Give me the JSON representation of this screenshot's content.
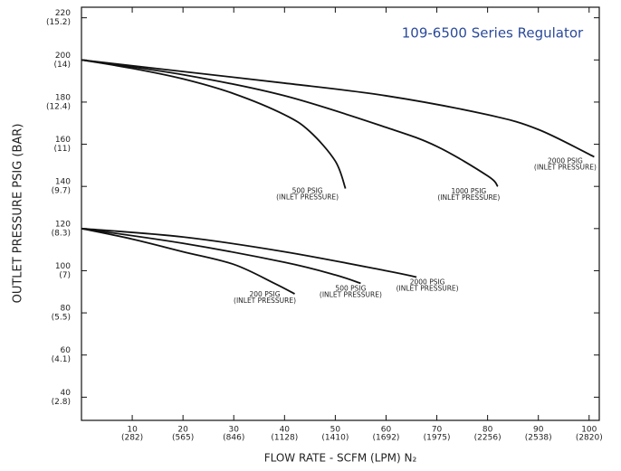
{
  "chart_data": {
    "type": "line",
    "title": "109-6500 Series Regulator",
    "x_label": "FLOW RATE - SCFM (LPM) N₂",
    "y_label": "OUTLET PRESSURE PSIG (BAR)",
    "xlim": [
      0,
      102
    ],
    "ylim": [
      29,
      225
    ],
    "xticks": [
      10,
      20,
      30,
      40,
      50,
      60,
      70,
      80,
      90,
      100
    ],
    "xtick_sublabels": [
      "(282)",
      "(565)",
      "(846)",
      "(1128)",
      "(1410)",
      "(1692)",
      "(1975)",
      "(2256)",
      "(2538)",
      "(2820)"
    ],
    "yticks": [
      220,
      200,
      180,
      160,
      140,
      120,
      100,
      80,
      60,
      40
    ],
    "ytick_sublabels": [
      "(15.2)",
      "(14)",
      "(12.4)",
      "(11)",
      "(9.7)",
      "(8.3)",
      "(7)",
      "(5.5)",
      "(4.1)",
      "(2.8)"
    ],
    "color": "#111111",
    "title_color": "#2b4a9a",
    "series": [
      {
        "name": "500 PSIG",
        "note": "(INLET PRESSURE)",
        "x": [
          0,
          10,
          20,
          30,
          40,
          45,
          50,
          52
        ],
        "values": [
          200,
          196,
          191,
          184,
          174,
          166,
          152,
          139
        ]
      },
      {
        "name": "1000 PSIG",
        "note": "(INLET PRESSURE)",
        "x": [
          0,
          20,
          40,
          60,
          70,
          80,
          82
        ],
        "values": [
          200,
          193,
          183,
          168,
          159,
          145,
          140
        ]
      },
      {
        "name": "2000 PSIG",
        "note": "(INLET PRESSURE)",
        "x": [
          0,
          20,
          40,
          60,
          80,
          90,
          101
        ],
        "values": [
          200,
          194.5,
          189,
          183,
          174,
          167,
          154
        ]
      },
      {
        "name": "200 PSIG",
        "note": "(INLET PRESSURE)",
        "x": [
          0,
          10,
          20,
          30,
          38,
          42
        ],
        "values": [
          120,
          115,
          109,
          103,
          94,
          89
        ]
      },
      {
        "name": "500 PSIG",
        "note": "(INLET PRESSURE)",
        "x": [
          0,
          20,
          40,
          50,
          55
        ],
        "values": [
          120,
          113,
          104,
          98,
          94
        ]
      },
      {
        "name": "2000 PSIG",
        "note": "(INLET PRESSURE)",
        "x": [
          0,
          20,
          40,
          60,
          66
        ],
        "values": [
          120,
          116,
          109,
          100,
          97
        ]
      }
    ]
  }
}
